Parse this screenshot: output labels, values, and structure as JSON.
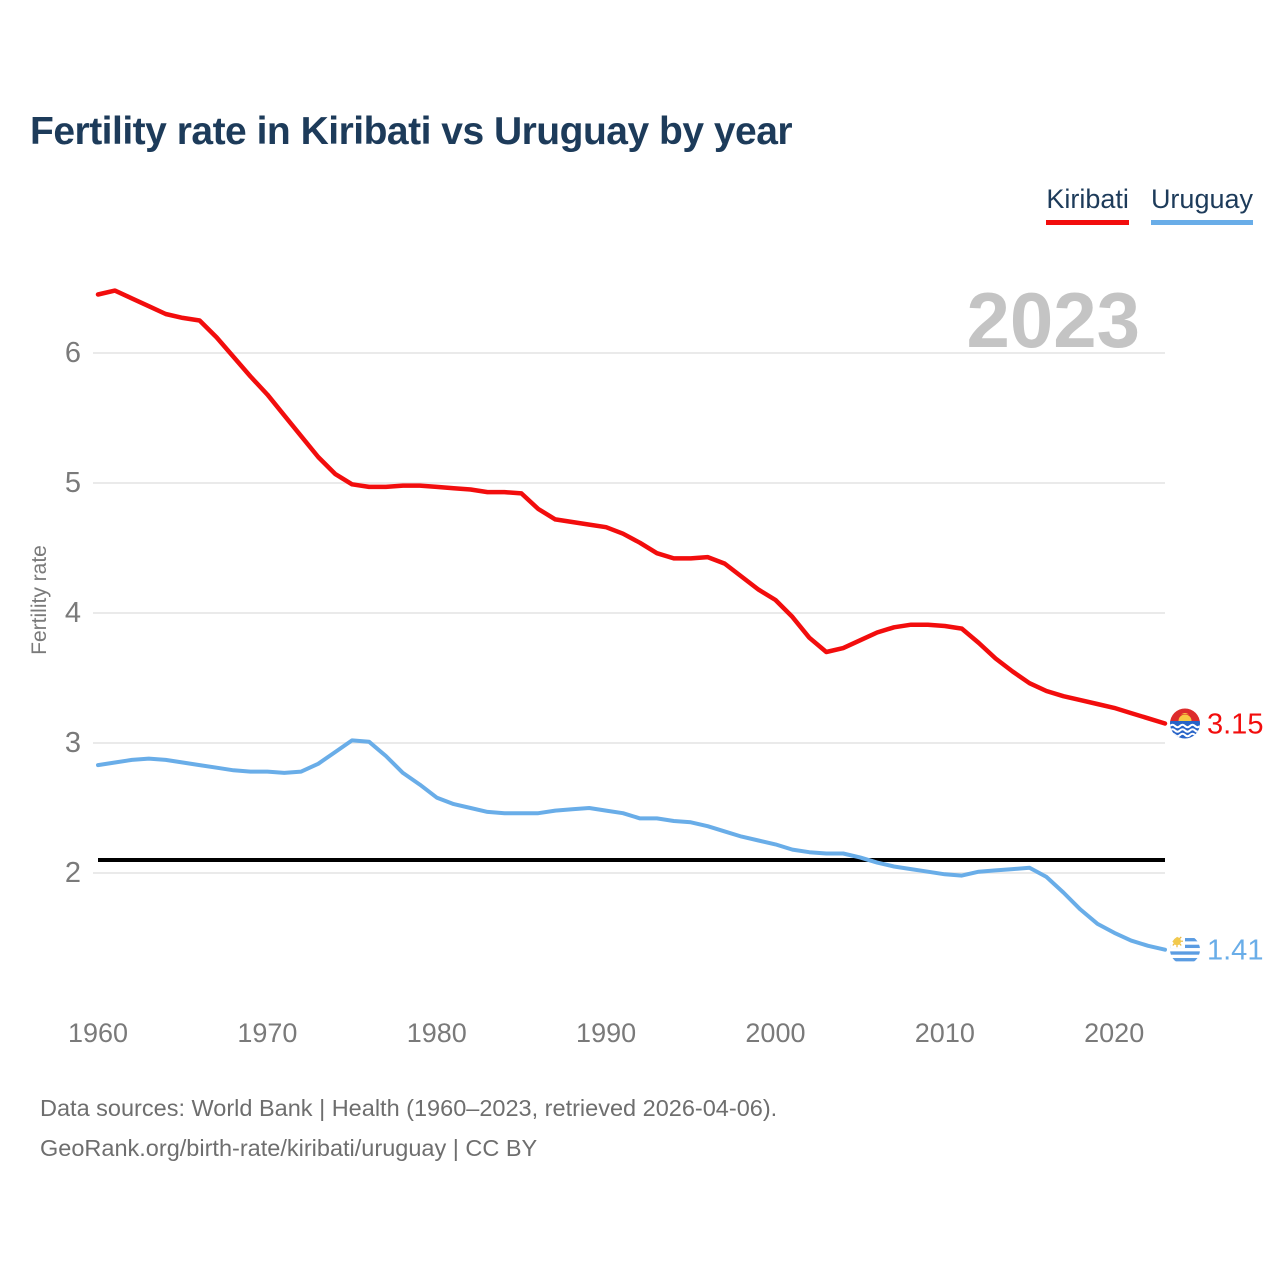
{
  "title": "Fertility rate in Kiribati vs Uruguay by year",
  "footer": {
    "line1": "Data sources: World Bank | Health (1960–2023, retrieved 2026-04-06).",
    "line2": "GeoRank.org/birth-rate/kiribati/uruguay | CC BY"
  },
  "colors": {
    "title_navy": "#1d3b5a",
    "axis_gray": "#7a7a7a",
    "watermark_gray": "#c4c4c4",
    "gridline_gray": "#eaeaea",
    "reference_black": "#000000",
    "kiribati_red": "#f20d0d",
    "uruguay_blue": "#69ade8"
  },
  "chart_data": {
    "type": "line",
    "title": "Fertility rate in Kiribati vs Uruguay by year",
    "ylabel": "Fertility rate",
    "xlabel": "",
    "watermark_year": "2023",
    "grid": "horizontal",
    "legend_position": "top-right",
    "x_start": 1960,
    "x_end": 2023,
    "xticks": [
      1960,
      1970,
      1980,
      1990,
      2000,
      2010,
      2020
    ],
    "yticks": [
      2,
      3,
      4,
      5,
      6
    ],
    "ylim": [
      1.25,
      6.65
    ],
    "reference_line_value": 2.1,
    "series": [
      {
        "name": "Kiribati",
        "color": "#f20d0d",
        "flag": "kiribati",
        "final_value_label": "3.15",
        "values": [
          6.45,
          6.48,
          6.42,
          6.36,
          6.3,
          6.27,
          6.25,
          6.12,
          5.97,
          5.82,
          5.68,
          5.52,
          5.36,
          5.2,
          5.07,
          4.99,
          4.97,
          4.97,
          4.98,
          4.98,
          4.97,
          4.96,
          4.95,
          4.93,
          4.93,
          4.92,
          4.8,
          4.72,
          4.7,
          4.68,
          4.66,
          4.61,
          4.54,
          4.46,
          4.42,
          4.42,
          4.43,
          4.38,
          4.28,
          4.18,
          4.1,
          3.97,
          3.81,
          3.7,
          3.73,
          3.79,
          3.85,
          3.89,
          3.91,
          3.91,
          3.9,
          3.88,
          3.77,
          3.65,
          3.55,
          3.46,
          3.4,
          3.36,
          3.33,
          3.3,
          3.27,
          3.23,
          3.19,
          3.15
        ]
      },
      {
        "name": "Uruguay",
        "color": "#69ade8",
        "flag": "uruguay",
        "final_value_label": "1.41",
        "values": [
          2.83,
          2.85,
          2.87,
          2.88,
          2.87,
          2.85,
          2.83,
          2.81,
          2.79,
          2.78,
          2.78,
          2.77,
          2.78,
          2.84,
          2.93,
          3.02,
          3.01,
          2.9,
          2.77,
          2.68,
          2.58,
          2.53,
          2.5,
          2.47,
          2.46,
          2.46,
          2.46,
          2.48,
          2.49,
          2.5,
          2.48,
          2.46,
          2.42,
          2.42,
          2.4,
          2.39,
          2.36,
          2.32,
          2.28,
          2.25,
          2.22,
          2.18,
          2.16,
          2.15,
          2.15,
          2.12,
          2.08,
          2.05,
          2.03,
          2.01,
          1.99,
          1.98,
          2.01,
          2.02,
          2.03,
          2.04,
          1.97,
          1.85,
          1.72,
          1.61,
          1.54,
          1.48,
          1.44,
          1.41
        ]
      }
    ]
  }
}
